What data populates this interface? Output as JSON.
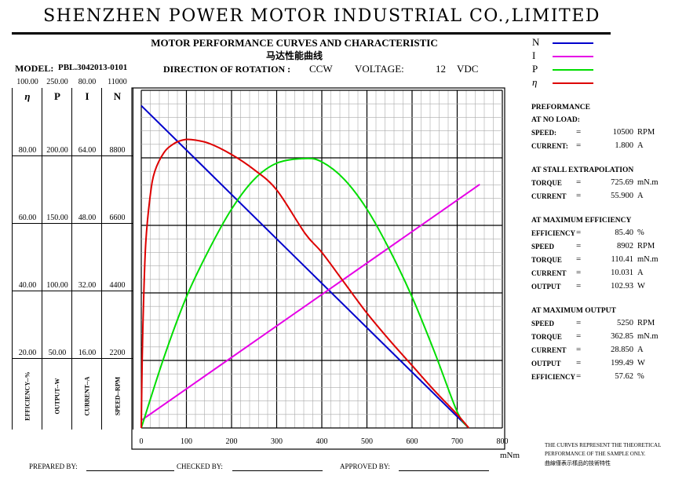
{
  "header": {
    "company": "SHENZHEN POWER MOTOR INDUSTRIAL CO.,LIMITED",
    "title_en": "MOTOR PERFORMANCE CURVES AND CHARACTERISTIC",
    "title_cn": "马达性能曲线",
    "model_label": "MODEL:",
    "model": "PBL.3042013-0101",
    "direction_label": "DIRECTION OF ROTATION :",
    "direction": "CCW",
    "voltage_label": "VOLTAGE:",
    "voltage": "12",
    "voltage_unit": "VDC"
  },
  "legend": [
    {
      "symbol": "N",
      "color": "#0000cc"
    },
    {
      "symbol": "I",
      "color": "#e600e6"
    },
    {
      "symbol": "P",
      "color": "#00dd00"
    },
    {
      "symbol": "η",
      "color": "#dd0000"
    }
  ],
  "axes_columns": [
    {
      "symbol": "η",
      "label": "EFFICIENCY--%",
      "ticks": [
        "100.00",
        "80.00",
        "60.00",
        "40.00",
        "20.00"
      ]
    },
    {
      "symbol": "P",
      "label": "OUTPUT--W",
      "ticks": [
        "250.00",
        "200.00",
        "150.00",
        "100.00",
        "50.00"
      ]
    },
    {
      "symbol": "I",
      "label": "CURRENT--A",
      "ticks": [
        "80.00",
        "64.00",
        "48.00",
        "32.00",
        "16.00"
      ]
    },
    {
      "symbol": "N",
      "label": "SPEED--RPM",
      "ticks": [
        "11000",
        "8800",
        "6600",
        "4400",
        "2200"
      ]
    }
  ],
  "chart_data": {
    "type": "line",
    "xlabel": "mNm",
    "xlim": [
      0,
      800
    ],
    "x_ticks": [
      "0",
      "100",
      "200",
      "300",
      "400",
      "500",
      "600",
      "700",
      "800"
    ],
    "grid": true,
    "series": [
      {
        "name": "N",
        "color": "#0000cc",
        "unit": "RPM",
        "scale_max": 11000,
        "x": [
          0,
          725.69
        ],
        "y": [
          10500,
          0
        ]
      },
      {
        "name": "I",
        "color": "#e600e6",
        "unit": "A",
        "scale_max": 80,
        "x": [
          0,
          750
        ],
        "y": [
          1.8,
          57.7
        ]
      },
      {
        "name": "P",
        "color": "#00dd00",
        "unit": "W",
        "scale_max": 250,
        "x": [
          0,
          50,
          100,
          150,
          200,
          250,
          300,
          362.85,
          400,
          450,
          500,
          550,
          600,
          650,
          700,
          725.69
        ],
        "y": [
          0,
          52,
          97,
          132,
          162,
          184,
          196,
          199.49,
          197,
          184,
          162,
          132,
          97,
          56,
          12,
          0
        ]
      },
      {
        "name": "η",
        "color": "#dd0000",
        "unit": "%",
        "scale_max": 100,
        "x": [
          0,
          2,
          5,
          10,
          20,
          30,
          50,
          70,
          90,
          110.41,
          150,
          200,
          250,
          300,
          362.85,
          400,
          450,
          500,
          550,
          600,
          650,
          700,
          725.69
        ],
        "y": [
          0,
          20,
          37,
          55,
          69,
          76,
          81.5,
          84,
          85.2,
          85.4,
          84.3,
          81,
          76.5,
          70.5,
          57.62,
          52,
          43,
          34,
          26,
          18.5,
          11,
          4,
          0
        ]
      }
    ]
  },
  "report": {
    "title": "PREFORMANCE",
    "sections": [
      {
        "heading": "AT NO LOAD:",
        "rows": [
          {
            "label": "SPEED:",
            "value": "10500",
            "unit": "RPM"
          },
          {
            "label": "CURRENT:",
            "value": "1.800",
            "unit": "A"
          }
        ]
      },
      {
        "heading": "AT STALL EXTRAPOLATION",
        "rows": [
          {
            "label": "TORQUE",
            "value": "725.69",
            "unit": "mN.m"
          },
          {
            "label": "CURRENT",
            "value": "55.900",
            "unit": "A"
          }
        ]
      },
      {
        "heading": "AT MAXIMUM EFFICIENCY",
        "rows": [
          {
            "label": "EFFICIENCY",
            "value": "85.40",
            "unit": "%"
          },
          {
            "label": "SPEED",
            "value": "8902",
            "unit": "RPM"
          },
          {
            "label": "TORQUE",
            "value": "110.41",
            "unit": "mN.m"
          },
          {
            "label": "CURRENT",
            "value": "10.031",
            "unit": "A"
          },
          {
            "label": "OUTPUT",
            "value": "102.93",
            "unit": "W"
          }
        ]
      },
      {
        "heading": "AT MAXIMUM OUTPUT",
        "rows": [
          {
            "label": "SPEED",
            "value": "5250",
            "unit": "RPM"
          },
          {
            "label": "TORQUE",
            "value": "362.85",
            "unit": "mN.m"
          },
          {
            "label": "CURRENT",
            "value": "28.850",
            "unit": "A"
          },
          {
            "label": "OUTPUT",
            "value": "199.49",
            "unit": "W"
          },
          {
            "label": "EFFICIENCY",
            "value": "57.62",
            "unit": "%"
          }
        ]
      }
    ]
  },
  "notes": {
    "line1": "THE CURVES REPRESENT THE THEORETICAL",
    "line2": "PERFORMANCE OF THE SAMPLE ONLY.",
    "line3": "曲線僅表示樣品的技術特性"
  },
  "footer": {
    "prepared": "PREPARED BY:",
    "checked": "CHECKED BY:",
    "approved": "APPROVED BY:"
  }
}
